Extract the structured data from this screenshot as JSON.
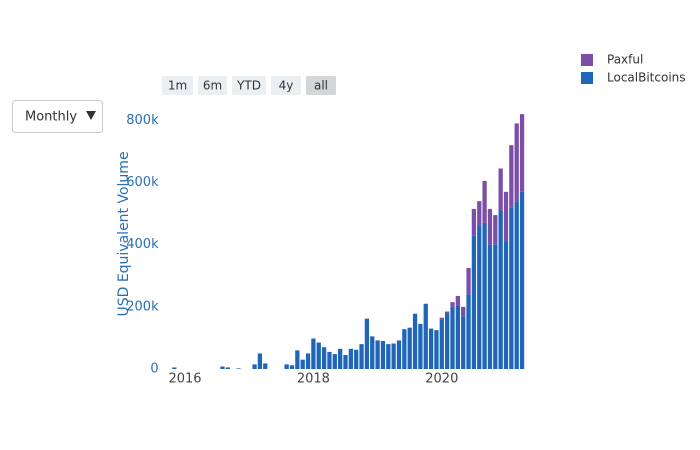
{
  "controls": {
    "interval": "Monthly",
    "range_buttons": [
      "1m",
      "6m",
      "YTD",
      "4y",
      "all"
    ],
    "active_range": "all"
  },
  "chart_data": {
    "type": "stacked_bar",
    "y_label": "USD Equivalent Volume",
    "x": [
      "2015-11",
      "2015-12",
      "2016-01",
      "2016-02",
      "2016-03",
      "2016-04",
      "2016-05",
      "2016-06",
      "2016-07",
      "2016-08",
      "2016-09",
      "2016-10",
      "2016-11",
      "2016-12",
      "2017-01",
      "2017-02",
      "2017-03",
      "2017-04",
      "2017-05",
      "2017-06",
      "2017-07",
      "2017-08",
      "2017-09",
      "2017-10",
      "2017-11",
      "2017-12",
      "2018-01",
      "2018-02",
      "2018-03",
      "2018-04",
      "2018-05",
      "2018-06",
      "2018-07",
      "2018-08",
      "2018-09",
      "2018-10",
      "2018-11",
      "2018-12",
      "2019-01",
      "2019-02",
      "2019-03",
      "2019-04",
      "2019-05",
      "2019-06",
      "2019-07",
      "2019-08",
      "2019-09",
      "2019-10",
      "2019-11",
      "2019-12",
      "2020-01",
      "2020-02",
      "2020-03",
      "2020-04",
      "2020-05",
      "2020-06",
      "2020-07",
      "2020-08",
      "2020-09",
      "2020-10",
      "2020-11",
      "2020-12",
      "2021-01",
      "2021-02",
      "2021-03",
      "2021-04"
    ],
    "series": [
      {
        "name": "LocalBitcoins",
        "color": "#1f66b9",
        "values": [
          5000,
          0,
          0,
          0,
          0,
          0,
          0,
          0,
          0,
          8000,
          5000,
          0,
          2000,
          0,
          0,
          15000,
          50000,
          18000,
          0,
          0,
          0,
          15000,
          12000,
          60000,
          30000,
          50000,
          98000,
          85000,
          70000,
          55000,
          48000,
          65000,
          45000,
          65000,
          62000,
          80000,
          162000,
          105000,
          92000,
          90000,
          80000,
          82000,
          92000,
          128000,
          133000,
          178000,
          145000,
          210000,
          130000,
          125000,
          160000,
          180000,
          200000,
          205000,
          170000,
          240000,
          430000,
          460000,
          470000,
          400000,
          400000,
          510000,
          410000,
          520000,
          540000,
          570000
        ]
      },
      {
        "name": "Paxful",
        "color": "#7b4ea8",
        "values": [
          0,
          0,
          0,
          0,
          0,
          0,
          0,
          0,
          0,
          0,
          0,
          0,
          0,
          0,
          0,
          0,
          0,
          0,
          0,
          0,
          0,
          0,
          0,
          0,
          0,
          0,
          0,
          0,
          0,
          0,
          0,
          0,
          0,
          0,
          0,
          0,
          0,
          0,
          0,
          0,
          0,
          0,
          0,
          0,
          0,
          0,
          0,
          0,
          0,
          0,
          5000,
          5000,
          15000,
          30000,
          30000,
          85000,
          85000,
          80000,
          135000,
          115000,
          95000,
          135000,
          160000,
          200000,
          250000,
          250000
        ]
      }
    ],
    "xlim": [
      "2015-09",
      "2021-05"
    ],
    "xticks": [
      {
        "value": "2016-01",
        "label": "2016"
      },
      {
        "value": "2018-01",
        "label": "2018"
      },
      {
        "value": "2020-01",
        "label": "2020"
      }
    ],
    "ylim": [
      0,
      830000
    ],
    "yticks": [
      0,
      {
        "value": 200000,
        "label": "200k"
      },
      {
        "value": 400000,
        "label": "400k"
      },
      {
        "value": 600000,
        "label": "600k"
      },
      {
        "value": 800000,
        "label": "800k"
      }
    ],
    "legend": "top-right"
  }
}
